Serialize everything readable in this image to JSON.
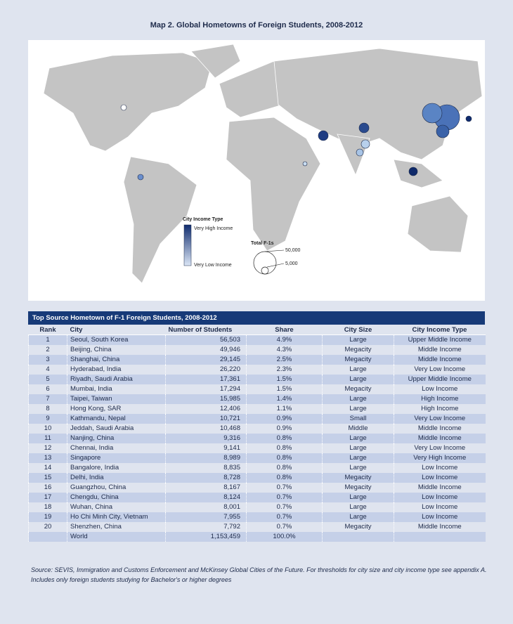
{
  "header": {
    "title": "Map 2. Global Hometowns of Foreign Students, 2008-2012"
  },
  "map": {
    "legend": {
      "income_title": "City Income Type",
      "income_high": "Very High Income",
      "income_low": "Very Low Income",
      "size_title": "Total F-1s",
      "size_large": "50,000",
      "size_small": "5,000"
    }
  },
  "table": {
    "title": "Top Source Hometown of F-1 Foreign Students, 2008-2012",
    "columns": [
      "Rank",
      "City",
      "Number of Students",
      "Share",
      "City Size",
      "City Income Type"
    ],
    "rows": [
      [
        "1",
        "Seoul, South Korea",
        "56,503",
        "4.9%",
        "Large",
        "Upper Middle Income"
      ],
      [
        "2",
        "Beijing, China",
        "49,946",
        "4.3%",
        "Megacity",
        "Middle Income"
      ],
      [
        "3",
        "Shanghai, China",
        "29,145",
        "2.5%",
        "Megacity",
        "Middle Income"
      ],
      [
        "4",
        "Hyderabad, India",
        "26,220",
        "2.3%",
        "Large",
        "Very Low Income"
      ],
      [
        "5",
        "Riyadh, Saudi Arabia",
        "17,361",
        "1.5%",
        "Large",
        "Upper Middle Income"
      ],
      [
        "6",
        "Mumbai, India",
        "17,294",
        "1.5%",
        "Megacity",
        "Low Income"
      ],
      [
        "7",
        "Taipei, Taiwan",
        "15,985",
        "1.4%",
        "Large",
        "High Income"
      ],
      [
        "8",
        "Hong Kong, SAR",
        "12,406",
        "1.1%",
        "Large",
        "High Income"
      ],
      [
        "9",
        "Kathmandu, Nepal",
        "10,721",
        "0.9%",
        "Small",
        "Very Low Income"
      ],
      [
        "10",
        "Jeddah, Saudi Arabia",
        "10,468",
        "0.9%",
        "Middle",
        "Middle Income"
      ],
      [
        "11",
        "Nanjing, China",
        "9,316",
        "0.8%",
        "Large",
        "Middle Income"
      ],
      [
        "12",
        "Chennai, India",
        "9,141",
        "0.8%",
        "Large",
        "Very Low Income"
      ],
      [
        "13",
        "Singapore",
        "8,989",
        "0.8%",
        "Large",
        "Very High Income"
      ],
      [
        "14",
        "Bangalore, India",
        "8,835",
        "0.8%",
        "Large",
        "Low Income"
      ],
      [
        "15",
        "Delhi, India",
        "8,728",
        "0.8%",
        "Megacity",
        "Low Income"
      ],
      [
        "16",
        "Guangzhou, China",
        "8,167",
        "0.7%",
        "Megacity",
        "Middle Income"
      ],
      [
        "17",
        "Chengdu, China",
        "8,124",
        "0.7%",
        "Large",
        "Low Income"
      ],
      [
        "18",
        "Wuhan, China",
        "8,001",
        "0.7%",
        "Large",
        "Low Income"
      ],
      [
        "19",
        "Ho Chi Minh City, Vietnam",
        "7,955",
        "0.7%",
        "Large",
        "Low Income"
      ],
      [
        "20",
        "Shenzhen, China",
        "7,792",
        "0.7%",
        "Megacity",
        "Middle Income"
      ]
    ],
    "total": {
      "city": "World",
      "students": "1,153,459",
      "share": "100.0%"
    }
  },
  "footnotes": [
    "Source: SEVIS, Immigration and Customs Enforcement and McKinsey Global Cities of the Future. For thresholds for city size and city income type see appendix A.",
    "Includes only foreign students studying for Bachelor's or higher degrees"
  ]
}
